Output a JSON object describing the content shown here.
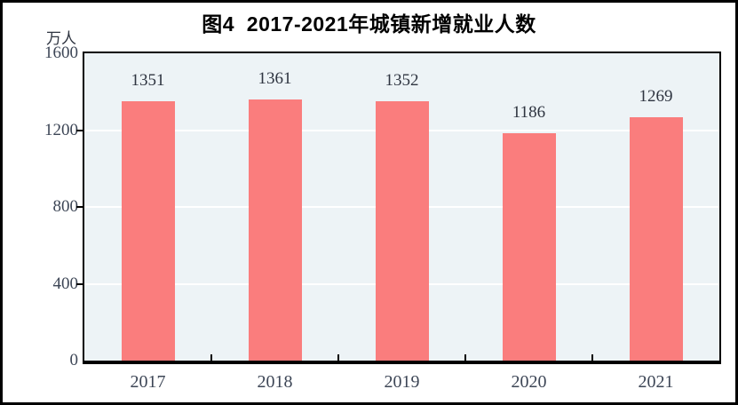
{
  "figure": {
    "title": "图4  2017-2021年城镇新增就业人数",
    "unit_label": "万人"
  },
  "chart_data": {
    "type": "bar",
    "title": "图4  2017-2021年城镇新增就业人数",
    "categories": [
      "2017",
      "2018",
      "2019",
      "2020",
      "2021"
    ],
    "values": [
      1351,
      1361,
      1352,
      1186,
      1269
    ],
    "xlabel": "",
    "ylabel": "万人",
    "ylim": [
      0,
      1600
    ],
    "yticks": [
      0,
      400,
      800,
      1200,
      1600
    ],
    "gridline_values": [
      400,
      800,
      1200
    ],
    "grid": true,
    "legend": false,
    "data_labels": true,
    "colors": {
      "bar": "#fa7d7d",
      "plot_background": "#edf3f6",
      "gridline": "#ffffff",
      "axis_line": "#000000",
      "axis_text": "#3d4656",
      "value_label_text": "#2e3440",
      "title_text": "#000000"
    }
  }
}
